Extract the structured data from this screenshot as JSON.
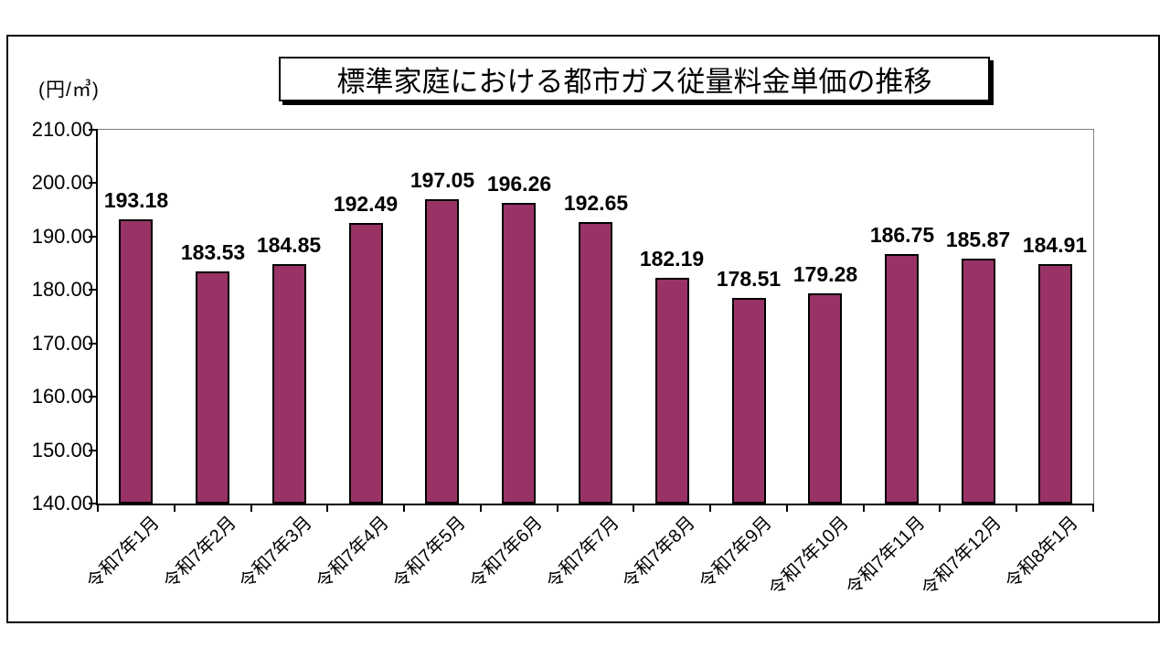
{
  "chart_data": {
    "type": "bar",
    "title": "標準家庭における都市ガス従量料金単価の推移",
    "unit_label": "(円/㎥)",
    "categories": [
      "令和7年1月",
      "令和7年2月",
      "令和7年3月",
      "令和7年4月",
      "令和7年5月",
      "令和7年6月",
      "令和7年7月",
      "令和7年8月",
      "令和7年9月",
      "令和7年10月",
      "令和7年11月",
      "令和7年12月",
      "令和8年1月"
    ],
    "values": [
      193.18,
      183.53,
      184.85,
      192.49,
      197.05,
      196.26,
      192.65,
      182.19,
      178.51,
      179.28,
      186.75,
      185.87,
      184.91
    ],
    "value_labels": [
      "193.18",
      "183.53",
      "184.85",
      "192.49",
      "197.05",
      "196.26",
      "192.65",
      "182.19",
      "178.51",
      "179.28",
      "186.75",
      "185.87",
      "184.91"
    ],
    "ylim": [
      140,
      210
    ],
    "ytick_step": 10,
    "ytick_labels_top_to_bottom": [
      "210.00",
      "200.00",
      "190.00",
      "180.00",
      "170.00",
      "160.00",
      "150.00",
      "140.00"
    ],
    "grid": false,
    "legend": "none",
    "bar_color": "#993366",
    "bar_border_color": "#000000",
    "axis_color": "#000000",
    "plot_border_color": "#808080",
    "background_color": "#ffffff"
  }
}
